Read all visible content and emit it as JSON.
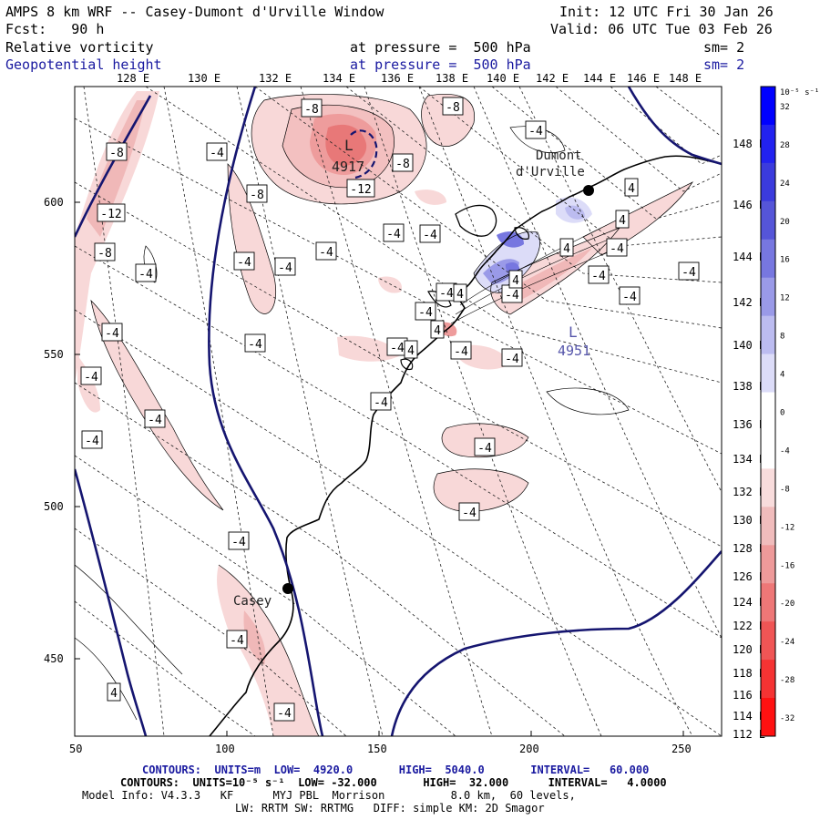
{
  "header": {
    "title": "AMPS 8 km WRF -- Casey-Dumont d'Urville Window",
    "init": "Init: 12 UTC Fri 30 Jan 26",
    "fcst": "Fcst:   90 h",
    "valid": "Valid: 06 UTC Tue 03 Feb 26",
    "field1": "Relative vorticity",
    "field1_pressure": "at pressure =  500 hPa",
    "field1_sm": "sm= 2",
    "field2": "Geopotential height",
    "field2_pressure": "at pressure =  500 hPa",
    "field2_sm": "sm= 2"
  },
  "axes": {
    "left_ticks": [
      "600",
      "550",
      "500",
      "450"
    ],
    "bottom_ticks": [
      "50",
      "100",
      "150",
      "200",
      "250"
    ],
    "top_lon_labels": [
      "128 E",
      "130 E",
      "132 E",
      "134 E",
      "136 E",
      "138 E",
      "140 E",
      "142 E",
      "144 E",
      "146 E",
      "148 E"
    ],
    "right_lat_labels": [
      "148 E",
      "146 E",
      "144 E",
      "142 E",
      "140 E",
      "138 E",
      "136 E",
      "134 E",
      "132 E",
      "130 E",
      "128 E",
      "126 E",
      "124 E",
      "122 E",
      "120 E",
      "118 E",
      "116 E",
      "114 E",
      "112 E"
    ]
  },
  "colorbar": {
    "unit": "10⁻⁵ s⁻¹",
    "labels": [
      "32",
      "28",
      "24",
      "20",
      "16",
      "12",
      "8",
      "4",
      "0",
      "-4",
      "-8",
      "-12",
      "-16",
      "-20",
      "-24",
      "-28",
      "-32"
    ],
    "colors": [
      "#0000ff",
      "#2222f0",
      "#3b3bdd",
      "#5555d8",
      "#7777e0",
      "#9a9ae8",
      "#bcbcf0",
      "#dcdcf8",
      "#ffffff",
      "#ffffff",
      "#f8dcdc",
      "#f0bcbc",
      "#ee9a9a",
      "#ee7777",
      "#f05555",
      "#f53333",
      "#ff1111"
    ]
  },
  "stations": {
    "dumont": [
      "Dumont",
      "d'Urville"
    ],
    "casey": "Casey"
  },
  "height_labels": [
    {
      "text": "L",
      "value": "4917"
    },
    {
      "text": "L",
      "value": "4951"
    }
  ],
  "vorticity_labels": [
    "-8",
    "-8",
    "-8",
    "-8",
    "-12",
    "-4",
    "-8",
    "-12",
    "-8",
    "-4",
    "-4",
    "-4",
    "-4",
    "-4",
    "-4",
    "-4",
    "-4",
    "-4",
    "-4",
    "-4",
    "-4",
    "-4",
    "-4",
    "-4",
    "-4",
    "-4",
    "-4",
    "-4",
    "-4",
    "-4",
    "-4",
    "-4",
    "-4",
    "-4",
    "-4",
    "-4",
    "-4",
    "4",
    "4",
    "4",
    "4",
    "4",
    "4",
    "4",
    "4",
    "4"
  ],
  "footer": {
    "line1": "CONTOURS:  UNITS=m  LOW=  4920.0       HIGH=  5040.0       INTERVAL=   60.000",
    "line2": "CONTOURS:  UNITS=10⁻⁵ s⁻¹  LOW= -32.000       HIGH=  32.000      INTERVAL=   4.0000",
    "line3": "Model Info: V4.3.3   KF      MYJ PBL  Morrison          8.0 km,  60 levels,",
    "line4": "LW: RRTM SW: RRTMG   DIFF: simple KM: 2D Smagor"
  }
}
